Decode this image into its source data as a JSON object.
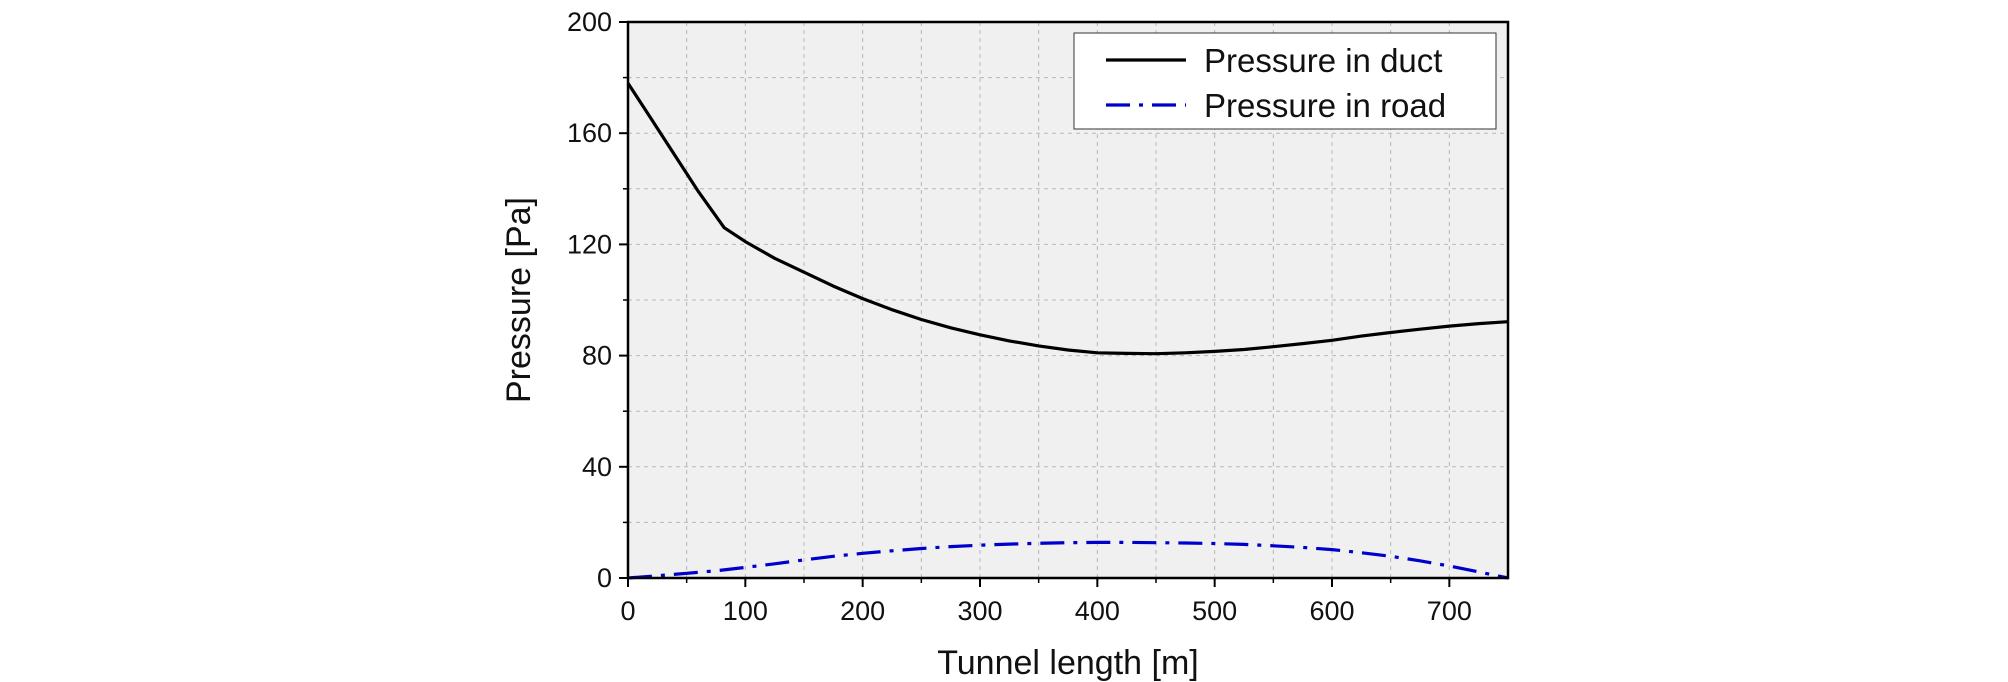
{
  "chart_data": {
    "type": "line",
    "xlabel": "Tunnel length [m]",
    "ylabel": "Pressure [Pa]",
    "xlim": [
      0,
      750
    ],
    "ylim": [
      0,
      200
    ],
    "xticks": [
      0,
      100,
      200,
      300,
      400,
      500,
      600,
      700
    ],
    "yticks": [
      0,
      40,
      80,
      120,
      160,
      200
    ],
    "grid": true,
    "legend_position": "top-right",
    "series": [
      {
        "name": "Pressure in duct",
        "color": "#000000",
        "style": "solid",
        "x": [
          0,
          20,
          40,
          60,
          82,
          100,
          125,
          150,
          175,
          200,
          225,
          250,
          275,
          300,
          325,
          350,
          375,
          400,
          425,
          450,
          475,
          500,
          525,
          550,
          575,
          600,
          625,
          650,
          675,
          700,
          725,
          750
        ],
        "values": [
          178,
          165,
          152,
          139,
          126,
          121,
          115,
          110,
          105,
          100.5,
          96.5,
          93,
          90,
          87.5,
          85.3,
          83.5,
          82,
          81,
          80.8,
          80.7,
          81,
          81.5,
          82.2,
          83.2,
          84.3,
          85.5,
          87,
          88.3,
          89.5,
          90.6,
          91.5,
          92.2
        ]
      },
      {
        "name": "Pressure in road",
        "color": "#0000cc",
        "style": "dashdot",
        "x": [
          0,
          25,
          50,
          75,
          100,
          125,
          150,
          175,
          200,
          225,
          250,
          275,
          300,
          325,
          350,
          375,
          400,
          425,
          450,
          475,
          500,
          525,
          550,
          575,
          600,
          625,
          650,
          675,
          700,
          725,
          750
        ],
        "values": [
          0,
          0.8,
          1.7,
          2.6,
          3.8,
          5.1,
          6.5,
          7.8,
          8.9,
          9.8,
          10.6,
          11.3,
          11.8,
          12.2,
          12.5,
          12.7,
          12.8,
          12.8,
          12.7,
          12.6,
          12.4,
          12.1,
          11.6,
          11,
          10.2,
          9.1,
          7.8,
          6.2,
          4.3,
          2.2,
          0
        ]
      }
    ]
  }
}
